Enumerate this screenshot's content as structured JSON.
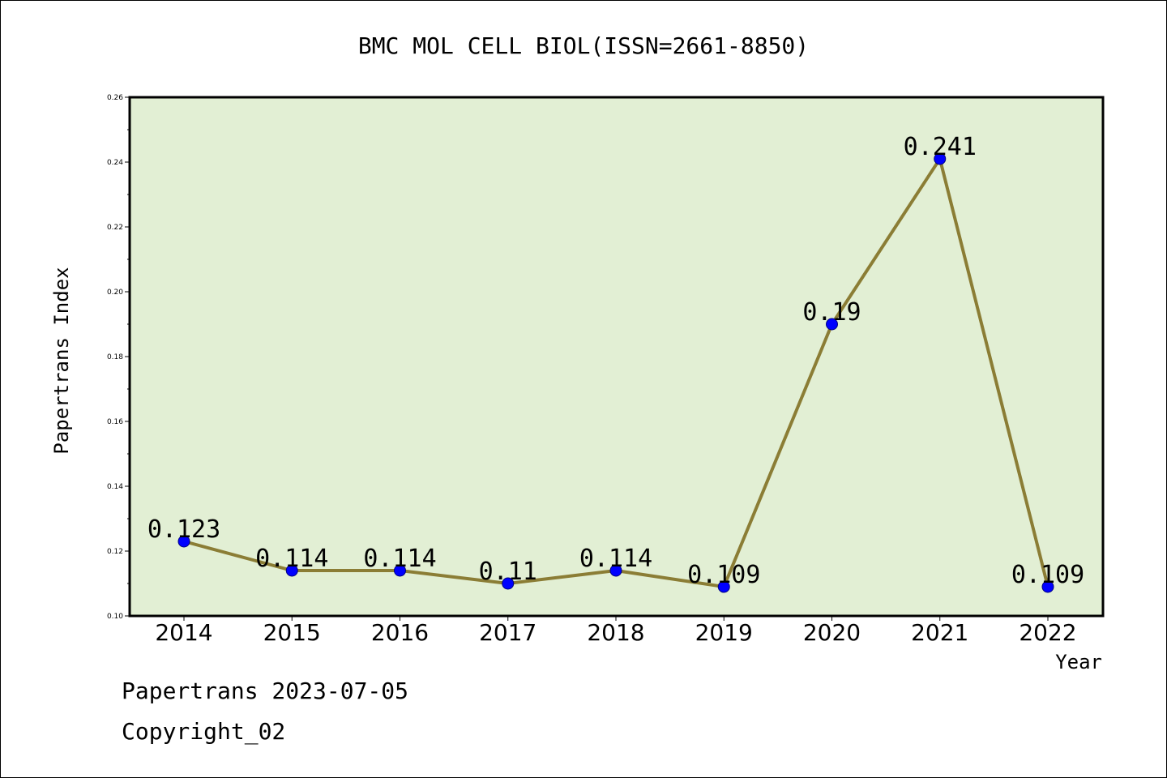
{
  "chart_data": {
    "type": "line",
    "title": "BMC MOL CELL BIOL(ISSN=2661-8850)",
    "xlabel": "Year",
    "ylabel": "Papertrans Index",
    "categories": [
      "2014",
      "2015",
      "2016",
      "2017",
      "2018",
      "2019",
      "2020",
      "2021",
      "2022"
    ],
    "series": [
      {
        "values": [
          0.123,
          0.114,
          0.114,
          0.11,
          0.114,
          0.109,
          0.19,
          0.241,
          0.109
        ],
        "labels": [
          "0.123",
          "0.114",
          "0.114",
          "0.11",
          "0.114",
          "0.109",
          "0.19",
          "0.241",
          "0.109"
        ]
      }
    ],
    "ylim": [
      0.1,
      0.26
    ],
    "yticks": [
      "0.10",
      "0.12",
      "0.14",
      "0.16",
      "0.18",
      "0.20",
      "0.22",
      "0.24",
      "0.26"
    ],
    "grid": false,
    "legend": "none"
  },
  "colors": {
    "plot_background": "#e2efd4",
    "line": "#8b7d35",
    "marker": "#0000ff",
    "axis": "#000000"
  },
  "footer": {
    "date_text": "Papertrans 2023-07-05",
    "copyright_text": "Copyright_02"
  }
}
